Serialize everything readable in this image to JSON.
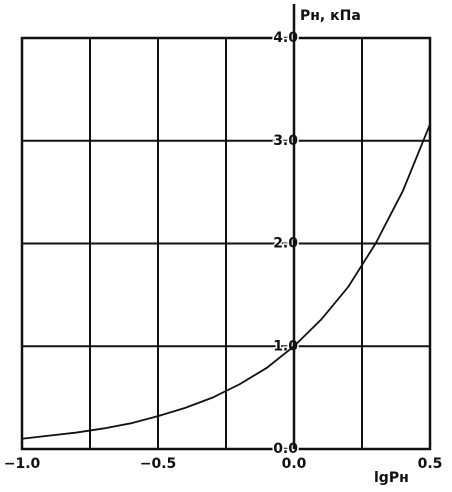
{
  "chart_data": {
    "type": "line",
    "y_label": "Pн, кПа",
    "x_label": "lgPн",
    "x": [
      -1.0,
      -0.9,
      -0.8,
      -0.7,
      -0.6,
      -0.5,
      -0.4,
      -0.3,
      -0.2,
      -0.1,
      0.0,
      0.1,
      0.2,
      0.3,
      0.4,
      0.5
    ],
    "series": [
      {
        "color": "#111111",
        "values": [
          0.1,
          0.13,
          0.16,
          0.2,
          0.25,
          0.32,
          0.4,
          0.5,
          0.63,
          0.79,
          1.0,
          1.26,
          1.58,
          2.0,
          2.51,
          3.16
        ]
      }
    ],
    "xlim": [
      -1.0,
      0.5
    ],
    "ylim": [
      0,
      4
    ],
    "xticks": [
      {
        "value": -1.0,
        "label": "−1.0"
      },
      {
        "value": -0.5,
        "label": "−0.5"
      },
      {
        "value": 0,
        "label": "0.0"
      },
      {
        "value": 0.5,
        "label": "0.5"
      }
    ],
    "xminor": [
      -0.75,
      -0.25,
      0.25
    ],
    "yticks": [
      {
        "value": 0,
        "label": "0.0"
      },
      {
        "value": 1,
        "label": "1.0"
      },
      {
        "value": 2,
        "label": "2.0"
      },
      {
        "value": 3,
        "label": "3.0"
      },
      {
        "value": 4,
        "label": "4.0"
      }
    ],
    "grid": true
  }
}
